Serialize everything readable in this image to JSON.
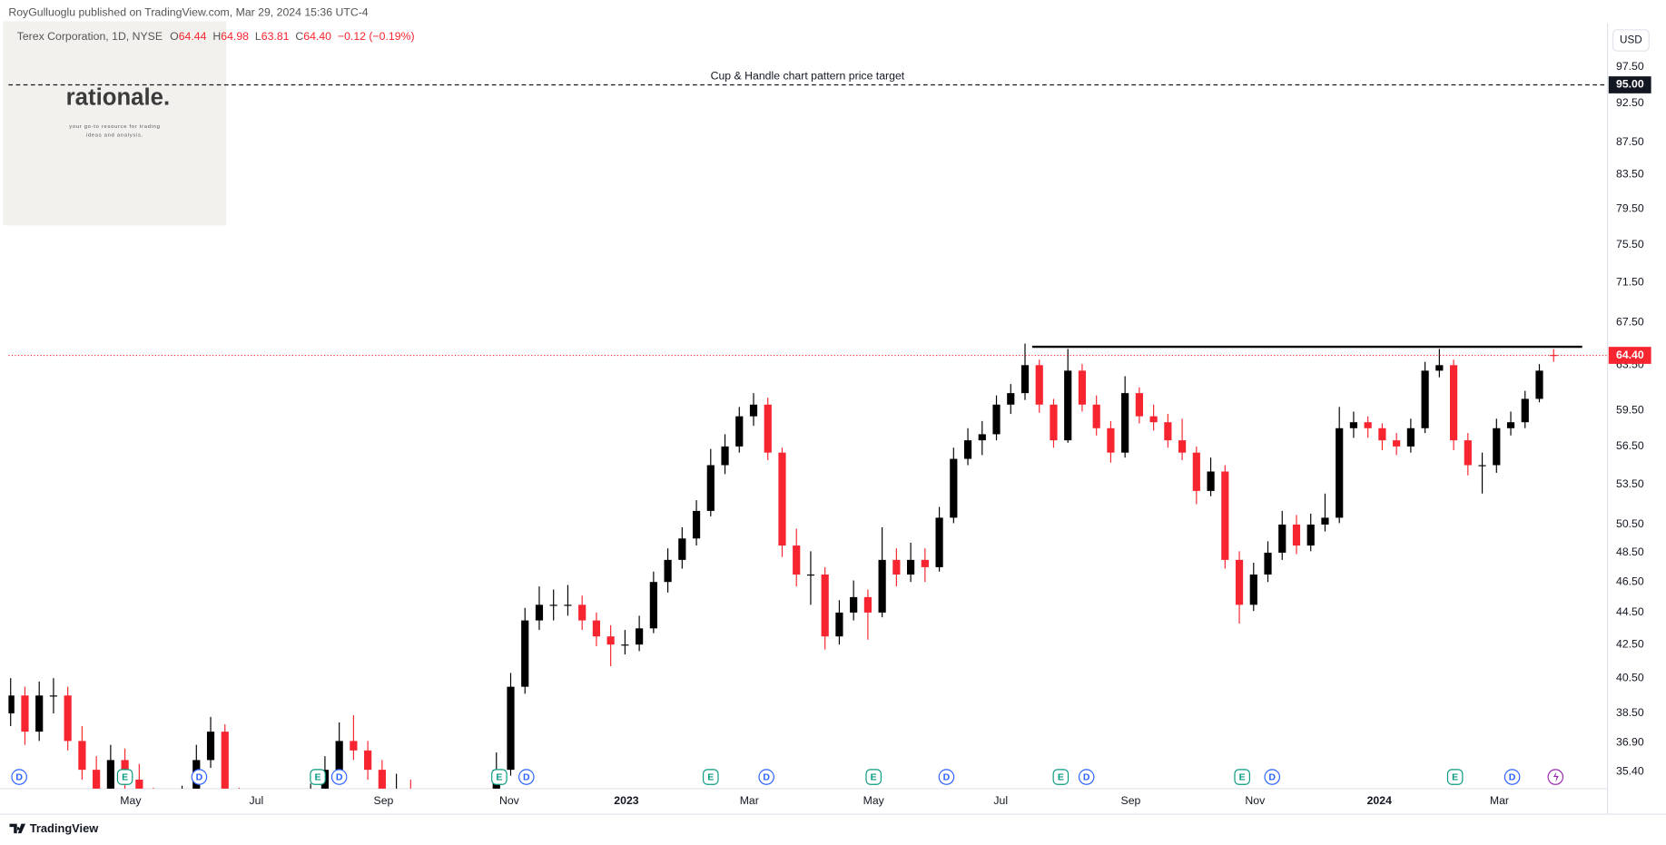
{
  "header": {
    "publisher": "RoyGulluoglu published on TradingView.com, Mar 29, 2024 15:36 UTC-4",
    "currency": "USD",
    "brand": "TradingView"
  },
  "watermark": {
    "title": "rationale.",
    "tagline_1": "your go-to resource for trading",
    "tagline_2": "ideas and analysis."
  },
  "chart_data": {
    "type": "candlestick",
    "title": "Terex Corporation, 1D, NYSE",
    "legend_keys": [
      "O",
      "H",
      "L",
      "C"
    ],
    "legend_values": [
      "64.44",
      "64.98",
      "63.81",
      "64.40"
    ],
    "change": "−0.12 (−0.19%)",
    "up_color": "#000000",
    "down_color": "#f7252f",
    "log_scale": true,
    "grid": false,
    "ohlc": [
      [
        38.5,
        40.5,
        37.8,
        39.5
      ],
      [
        39.5,
        40,
        36.8,
        37.5
      ],
      [
        37.5,
        40.3,
        37,
        39.5
      ],
      [
        39.5,
        40.5,
        38.5,
        39.5
      ],
      [
        39.5,
        40,
        36.5,
        37
      ],
      [
        37,
        37.8,
        35,
        35.5
      ],
      [
        35.5,
        36.2,
        33.5,
        34
      ],
      [
        34,
        36.8,
        33.6,
        36
      ],
      [
        36,
        36.6,
        34.5,
        35
      ],
      [
        35,
        35.8,
        33.4,
        34
      ],
      [
        34,
        34.6,
        32.4,
        33
      ],
      [
        33,
        34,
        32.3,
        33
      ],
      [
        33,
        34.7,
        32.6,
        34
      ],
      [
        34,
        36.8,
        33.7,
        36
      ],
      [
        36,
        38.3,
        35.6,
        37.5
      ],
      [
        37.5,
        37.9,
        33.5,
        34
      ],
      [
        34,
        34.6,
        32.4,
        33
      ],
      [
        33,
        33.6,
        31.4,
        32
      ],
      [
        32,
        33.8,
        31.6,
        33
      ],
      [
        33,
        33.6,
        32,
        32.5
      ],
      [
        32.5,
        33.7,
        32,
        33
      ],
      [
        33,
        34.8,
        32.7,
        34
      ],
      [
        34,
        36.2,
        33.6,
        35.5
      ],
      [
        35.5,
        38,
        35.1,
        37
      ],
      [
        37,
        38.4,
        36,
        36.5
      ],
      [
        36.5,
        37,
        35,
        35.5
      ],
      [
        35.5,
        36,
        33.5,
        34
      ],
      [
        34,
        35.3,
        33.6,
        34.5
      ],
      [
        34.5,
        35,
        32.5,
        33
      ],
      [
        33,
        33.5,
        31.5,
        32
      ],
      [
        32,
        32.6,
        30.8,
        31.5
      ],
      [
        31.5,
        32.7,
        31,
        32
      ],
      [
        32,
        33.3,
        31.5,
        32.5
      ],
      [
        32.5,
        34.3,
        32.1,
        33.5
      ],
      [
        33.5,
        36.4,
        33.2,
        35.5
      ],
      [
        35.5,
        40.8,
        35.2,
        40
      ],
      [
        40,
        44.8,
        39.6,
        44
      ],
      [
        44,
        46.2,
        43.4,
        45
      ],
      [
        45,
        46,
        44,
        45
      ],
      [
        45,
        46.3,
        44.3,
        45
      ],
      [
        45,
        45.6,
        43.4,
        44
      ],
      [
        44,
        44.5,
        42.4,
        43
      ],
      [
        43,
        43.7,
        41.2,
        42.5
      ],
      [
        42.5,
        43.4,
        41.9,
        42.5
      ],
      [
        42.5,
        44.3,
        42.1,
        43.5
      ],
      [
        43.5,
        47.2,
        43.2,
        46.5
      ],
      [
        46.5,
        48.8,
        45.8,
        48
      ],
      [
        48,
        50.3,
        47.4,
        49.5
      ],
      [
        49.5,
        52.3,
        49,
        51.5
      ],
      [
        51.5,
        56.3,
        51.1,
        55
      ],
      [
        55,
        57.5,
        54.3,
        56.5
      ],
      [
        56.5,
        59.8,
        56,
        59
      ],
      [
        59,
        61,
        58.2,
        60
      ],
      [
        60,
        60.6,
        55.4,
        56
      ],
      [
        56,
        56.4,
        48.2,
        49
      ],
      [
        49,
        50.2,
        46.2,
        47
      ],
      [
        47,
        48.6,
        45,
        47
      ],
      [
        47,
        47.5,
        42.2,
        43
      ],
      [
        43,
        45.3,
        42.5,
        44.5
      ],
      [
        44.5,
        46.6,
        44,
        45.5
      ],
      [
        45.5,
        46,
        42.8,
        44.5
      ],
      [
        44.5,
        50.3,
        44.2,
        48
      ],
      [
        48,
        48.8,
        46.2,
        47
      ],
      [
        47,
        49.2,
        46.5,
        48
      ],
      [
        48,
        48.8,
        46.5,
        47.5
      ],
      [
        47.5,
        51.8,
        47.2,
        51
      ],
      [
        51,
        56.4,
        50.6,
        55.5
      ],
      [
        55.5,
        58,
        55,
        57
      ],
      [
        57,
        58.6,
        55.8,
        57.5
      ],
      [
        57.5,
        60.8,
        57,
        60
      ],
      [
        60,
        61.8,
        59.2,
        61
      ],
      [
        61,
        65.5,
        60.4,
        63.5
      ],
      [
        63.5,
        64,
        59.3,
        60
      ],
      [
        60,
        60.5,
        56.4,
        57
      ],
      [
        57,
        65,
        56.8,
        63
      ],
      [
        63,
        63.6,
        59.4,
        60
      ],
      [
        60,
        60.8,
        57.4,
        58
      ],
      [
        58,
        58.6,
        55.2,
        56
      ],
      [
        56,
        62.5,
        55.6,
        61
      ],
      [
        61,
        61.5,
        58.4,
        59
      ],
      [
        59,
        60,
        57.8,
        58.5
      ],
      [
        58.5,
        59.2,
        56.4,
        57
      ],
      [
        57,
        58.8,
        55.4,
        56
      ],
      [
        56,
        56.5,
        52,
        53
      ],
      [
        53,
        55.6,
        52.6,
        54.5
      ],
      [
        54.5,
        55,
        47.4,
        48
      ],
      [
        48,
        48.6,
        43.8,
        45
      ],
      [
        45,
        47.8,
        44.6,
        47
      ],
      [
        47,
        49.3,
        46.5,
        48.5
      ],
      [
        48.5,
        51.5,
        48,
        50.5
      ],
      [
        50.5,
        51.2,
        48.4,
        49
      ],
      [
        49,
        51.3,
        48.6,
        50.5
      ],
      [
        50.5,
        52.8,
        50,
        51
      ],
      [
        51,
        59.8,
        50.6,
        58
      ],
      [
        58,
        59.4,
        57.2,
        58.5
      ],
      [
        58.5,
        59,
        57.2,
        58
      ],
      [
        58,
        58.4,
        56.2,
        57
      ],
      [
        57,
        57.6,
        55.8,
        56.5
      ],
      [
        56.5,
        58.8,
        56,
        58
      ],
      [
        58,
        63.8,
        57.6,
        63
      ],
      [
        63,
        65,
        62.4,
        63.5
      ],
      [
        63.5,
        64,
        56.2,
        57
      ],
      [
        57,
        57.6,
        54.2,
        55
      ],
      [
        55,
        56,
        52.8,
        55
      ],
      [
        55,
        58.8,
        54.4,
        58
      ],
      [
        58,
        59.4,
        57.4,
        58.5
      ],
      [
        58.5,
        61.2,
        58,
        60.5
      ],
      [
        60.5,
        63.6,
        60.2,
        63
      ],
      [
        64.44,
        64.98,
        63.81,
        64.4
      ]
    ],
    "xlim": [
      -0.15,
      111.7
    ],
    "xticks": [
      {
        "value": 8.4,
        "label": "May"
      },
      {
        "value": 17.2,
        "label": "Jul"
      },
      {
        "value": 26.1,
        "label": "Sep"
      },
      {
        "value": 34.9,
        "label": "Nov"
      },
      {
        "value": 43.1,
        "label": "2023"
      },
      {
        "value": 51.7,
        "label": "Mar"
      },
      {
        "value": 60.4,
        "label": "May"
      },
      {
        "value": 69.3,
        "label": "Jul"
      },
      {
        "value": 78.4,
        "label": "Sep"
      },
      {
        "value": 87.1,
        "label": "Nov"
      },
      {
        "value": 95.8,
        "label": "2024"
      },
      {
        "value": 104.2,
        "label": "Mar"
      }
    ],
    "ylim": [
      34.55,
      103.3
    ],
    "yticks": [
      {
        "value": 97.5,
        "label": "97.50"
      },
      {
        "value": 92.5,
        "label": "92.50"
      },
      {
        "value": 87.5,
        "label": "87.50"
      },
      {
        "value": 83.5,
        "label": "83.50"
      },
      {
        "value": 79.5,
        "label": "79.50"
      },
      {
        "value": 75.5,
        "label": "75.50"
      },
      {
        "value": 71.5,
        "label": "71.50"
      },
      {
        "value": 67.5,
        "label": "67.50"
      },
      {
        "value": 63.5,
        "label": "63.50"
      },
      {
        "value": 59.5,
        "label": "59.50"
      },
      {
        "value": 56.5,
        "label": "56.50"
      },
      {
        "value": 53.5,
        "label": "53.50"
      },
      {
        "value": 50.5,
        "label": "50.50"
      },
      {
        "value": 48.5,
        "label": "48.50"
      },
      {
        "value": 46.5,
        "label": "46.50"
      },
      {
        "value": 44.5,
        "label": "44.50"
      },
      {
        "value": 42.5,
        "label": "42.50"
      },
      {
        "value": 40.5,
        "label": "40.50"
      },
      {
        "value": 38.5,
        "label": "38.50"
      },
      {
        "value": 36.9,
        "label": "36.90"
      },
      {
        "value": 35.4,
        "label": "35.40"
      }
    ],
    "target": {
      "value": 95,
      "label": "95.00",
      "text": "Cup & Handle chart pattern price target"
    },
    "last_price": {
      "value": 64.4,
      "label": "64.40"
    },
    "resistance": {
      "value": 65.2,
      "x": [
        71.5,
        110
      ]
    },
    "events": [
      {
        "label": "D",
        "x": 0.6
      },
      {
        "label": "E",
        "x": 8.0
      },
      {
        "label": "D",
        "x": 13.2
      },
      {
        "label": "E",
        "x": 21.5
      },
      {
        "label": "D",
        "x": 23.0
      },
      {
        "label": "E",
        "x": 34.2
      },
      {
        "label": "D",
        "x": 36.1
      },
      {
        "label": "E",
        "x": 49.0
      },
      {
        "label": "D",
        "x": 52.9
      },
      {
        "label": "E",
        "x": 60.4
      },
      {
        "label": "D",
        "x": 65.5
      },
      {
        "label": "E",
        "x": 73.5
      },
      {
        "label": "D",
        "x": 75.3
      },
      {
        "label": "E",
        "x": 86.2
      },
      {
        "label": "D",
        "x": 88.3
      },
      {
        "label": "E",
        "x": 101.1
      },
      {
        "label": "D",
        "x": 105.1
      }
    ]
  }
}
